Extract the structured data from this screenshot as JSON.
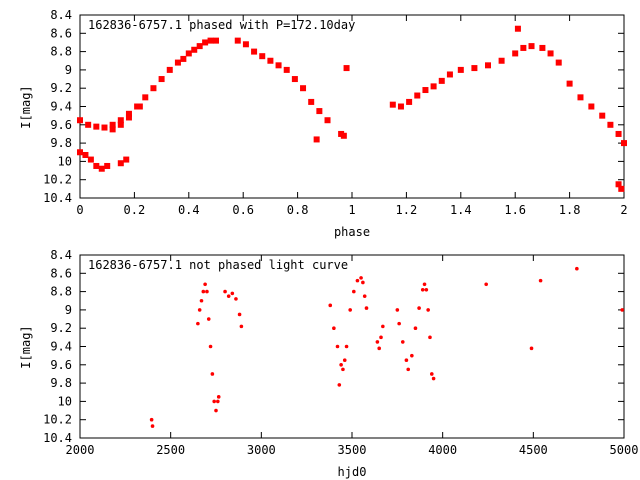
{
  "chart_data": [
    {
      "type": "scatter",
      "title": "162836-6757.1 phased with P=172.10day",
      "xlabel": "phase",
      "ylabel": "I[mag]",
      "xlim": [
        0,
        2
      ],
      "ylim": [
        8.4,
        10.4
      ],
      "y_inverted": true,
      "grid": false,
      "marker_color": "#ff0000",
      "xticks": [
        "0",
        "0.2",
        "0.4",
        "0.6",
        "0.8",
        "1",
        "1.2",
        "1.4",
        "1.6",
        "1.8",
        "2"
      ],
      "yticks": [
        "8.4",
        "8.6",
        "8.8",
        "9",
        "9.2",
        "9.4",
        "9.6",
        "9.8",
        "10",
        "10.2",
        "10.4"
      ],
      "x": [
        0.0,
        0.03,
        0.06,
        0.09,
        0.12,
        0.15,
        0.18,
        0.21,
        0.24,
        0.27,
        0.3,
        0.33,
        0.36,
        0.38,
        0.4,
        0.42,
        0.44,
        0.46,
        0.48,
        0.5,
        0.12,
        0.15,
        0.18,
        0.22,
        0.0,
        0.02,
        0.04,
        0.06,
        0.08,
        0.1,
        0.15,
        0.17,
        0.58,
        0.61,
        0.64,
        0.67,
        0.7,
        0.73,
        0.76,
        0.79,
        0.82,
        0.85,
        0.88,
        0.91,
        0.87,
        0.98,
        0.96,
        0.97,
        1.15,
        1.18,
        1.21,
        1.24,
        1.27,
        1.3,
        1.33,
        1.36,
        1.4,
        1.45,
        1.5,
        1.55,
        1.6,
        1.63,
        1.66,
        1.7,
        1.73,
        1.76,
        1.8,
        1.84,
        1.88,
        1.92,
        1.95,
        1.98,
        2.0,
        1.61,
        1.98,
        1.99
      ],
      "y": [
        9.55,
        9.6,
        9.62,
        9.63,
        9.6,
        9.55,
        9.48,
        9.4,
        9.3,
        9.2,
        9.1,
        9.0,
        8.92,
        8.88,
        8.82,
        8.78,
        8.74,
        8.7,
        8.68,
        8.68,
        9.65,
        9.6,
        9.52,
        9.4,
        9.9,
        9.93,
        9.98,
        10.05,
        10.08,
        10.05,
        10.02,
        9.98,
        8.68,
        8.72,
        8.8,
        8.85,
        8.9,
        8.95,
        9.0,
        9.1,
        9.2,
        9.35,
        9.45,
        9.55,
        9.76,
        8.98,
        9.7,
        9.72,
        9.38,
        9.4,
        9.35,
        9.28,
        9.22,
        9.18,
        9.12,
        9.05,
        9.0,
        8.98,
        8.95,
        8.9,
        8.82,
        8.76,
        8.74,
        8.76,
        8.82,
        8.92,
        9.15,
        9.3,
        9.4,
        9.5,
        9.6,
        9.7,
        9.8,
        8.55,
        10.25,
        10.3
      ]
    },
    {
      "type": "scatter",
      "title": "162836-6757.1 not phased light curve",
      "xlabel": "hjd0",
      "ylabel": "I[mag]",
      "xlim": [
        2000,
        5000
      ],
      "ylim": [
        8.4,
        10.4
      ],
      "y_inverted": true,
      "grid": false,
      "marker_color": "#ff0000",
      "xticks": [
        "2000",
        "2500",
        "3000",
        "3500",
        "4000",
        "4500",
        "5000"
      ],
      "yticks": [
        "8.4",
        "8.6",
        "8.8",
        "9",
        "9.2",
        "9.4",
        "9.6",
        "9.8",
        "10",
        "10.2",
        "10.4"
      ],
      "x": [
        2395,
        2400,
        2650,
        2660,
        2670,
        2680,
        2690,
        2700,
        2710,
        2720,
        2730,
        2740,
        2750,
        2760,
        2765,
        2800,
        2820,
        2840,
        2860,
        2880,
        2890,
        3380,
        3400,
        3420,
        3440,
        3450,
        3460,
        3470,
        3490,
        3510,
        3530,
        3550,
        3560,
        3570,
        3580,
        3430,
        3640,
        3650,
        3660,
        3670,
        3750,
        3760,
        3780,
        3800,
        3810,
        3830,
        3850,
        3870,
        3890,
        3900,
        3910,
        3920,
        3930,
        3940,
        3950,
        4240,
        4490,
        4540,
        4740,
        4990
      ],
      "y": [
        10.2,
        10.27,
        9.15,
        9.0,
        8.9,
        8.8,
        8.72,
        8.8,
        9.1,
        9.4,
        9.7,
        10.0,
        10.1,
        10.0,
        9.95,
        8.8,
        8.85,
        8.82,
        8.88,
        9.05,
        9.18,
        8.95,
        9.2,
        9.4,
        9.6,
        9.65,
        9.55,
        9.4,
        9.0,
        8.8,
        8.68,
        8.65,
        8.7,
        8.85,
        8.98,
        9.82,
        9.35,
        9.42,
        9.3,
        9.18,
        9.0,
        9.15,
        9.35,
        9.55,
        9.65,
        9.5,
        9.2,
        8.98,
        8.78,
        8.72,
        8.78,
        9.0,
        9.3,
        9.7,
        9.75,
        8.72,
        9.42,
        8.68,
        8.55,
        9.0
      ]
    }
  ]
}
